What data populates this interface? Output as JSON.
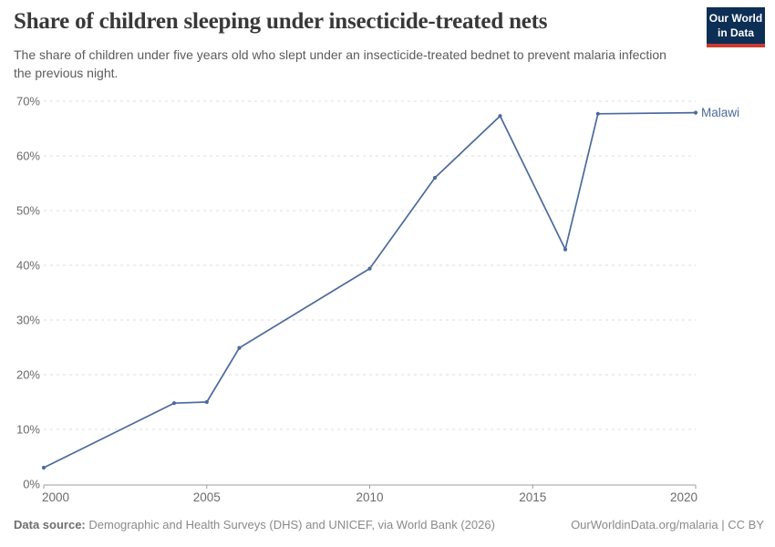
{
  "logo": {
    "line1": "Our World",
    "line2": "in Data"
  },
  "colors": {
    "line": "#4c6a9c",
    "logo_bg": "#0d2e55",
    "logo_accent": "#cc3b33",
    "grid": "#dcdcdc",
    "axis": "#9c9c9c",
    "tick_text": "#6b6b6b"
  },
  "chart_data": {
    "type": "line",
    "title": "Share of children sleeping under insecticide-treated nets",
    "subtitle": "The share of children under five years old who slept under an insecticide-treated bednet to prevent malaria infection the previous night.",
    "xlabel": "",
    "ylabel": "",
    "xlim": [
      2000,
      2020
    ],
    "ylim": [
      0,
      70
    ],
    "x_ticks": [
      2000,
      2005,
      2010,
      2015,
      2020
    ],
    "y_ticks": [
      0,
      10,
      20,
      30,
      40,
      50,
      60,
      70
    ],
    "y_tick_suffix": "%",
    "grid": "horizontal-dashed",
    "legend": "series-end-label",
    "series": [
      {
        "name": "Malawi",
        "color": "#4c6a9c",
        "points": [
          [
            2000,
            3.0
          ],
          [
            2004,
            14.8
          ],
          [
            2005,
            15.0
          ],
          [
            2006,
            24.9
          ],
          [
            2010,
            39.4
          ],
          [
            2012,
            56.0
          ],
          [
            2014,
            67.3
          ],
          [
            2016,
            42.9
          ],
          [
            2017,
            67.7
          ],
          [
            2020,
            67.9
          ]
        ]
      }
    ]
  },
  "footer": {
    "source_label": "Data source:",
    "source_text": "Demographic and Health Surveys (DHS) and UNICEF, via World Bank (2026)",
    "attribution": "OurWorldinData.org/malaria | CC BY"
  }
}
